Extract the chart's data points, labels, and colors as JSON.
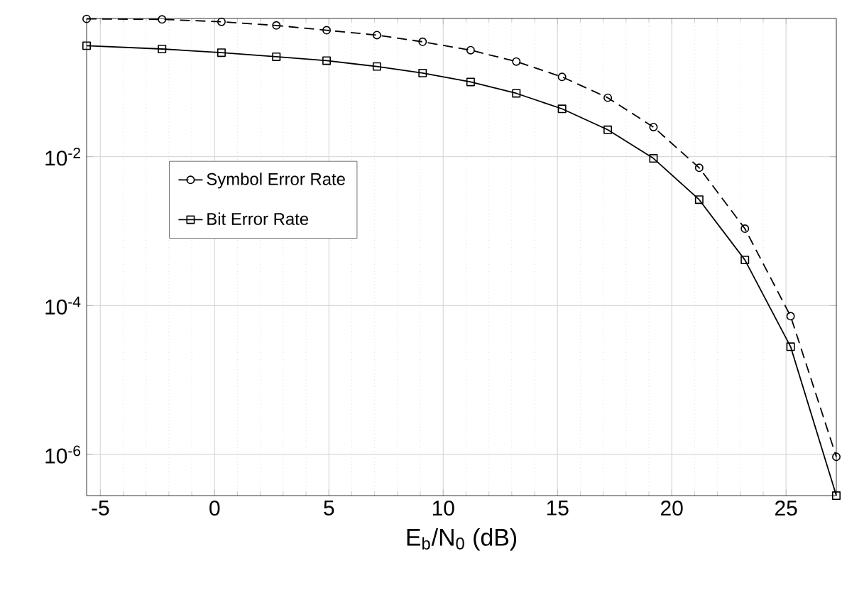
{
  "chart_data": {
    "type": "line",
    "xlabel": "E$_{b}$/N$_{0}$ (dB)",
    "log": "y",
    "grid": true,
    "legend": "left",
    "xlim": [
      -5.6,
      27.2
    ],
    "xticks": [
      -5,
      0,
      5,
      10,
      15,
      20,
      25
    ],
    "ylim": [
      2.8e-07,
      0.72
    ],
    "yticks": [
      {
        "value": 1e-06,
        "label": "10$^{-6}$"
      },
      {
        "value": 0.0001,
        "label": "10$^{-4}$"
      },
      {
        "value": 0.01,
        "label": "10$^{-2}$"
      }
    ],
    "series": [
      {
        "name": "Symbol Error Rate",
        "color": "#000000",
        "marker": "circle",
        "line_style": "dashed",
        "x": [
          -5.6,
          -2.3,
          0.3,
          2.7,
          4.9,
          7.1,
          9.1,
          11.2,
          13.2,
          15.2,
          17.2,
          19.2,
          21.2,
          23.2,
          25.2,
          27.2
        ],
        "values": [
          0.71,
          0.7,
          0.65,
          0.58,
          0.5,
          0.43,
          0.35,
          0.27,
          0.19,
          0.118,
          0.062,
          0.025,
          0.0071,
          0.00108,
          7.2e-05,
          9.3e-07
        ]
      },
      {
        "name": "Bit Error Rate",
        "color": "#000000",
        "marker": "square",
        "line_style": "solid",
        "x": [
          -5.6,
          -2.3,
          0.3,
          2.7,
          4.9,
          7.1,
          9.1,
          11.2,
          13.2,
          15.2,
          17.2,
          19.2,
          21.2,
          23.2,
          25.2,
          27.2
        ],
        "values": [
          0.31,
          0.28,
          0.25,
          0.22,
          0.195,
          0.163,
          0.133,
          0.101,
          0.071,
          0.044,
          0.023,
          0.0095,
          0.00265,
          0.00041,
          2.8e-05,
          2.8e-07
        ]
      }
    ]
  }
}
